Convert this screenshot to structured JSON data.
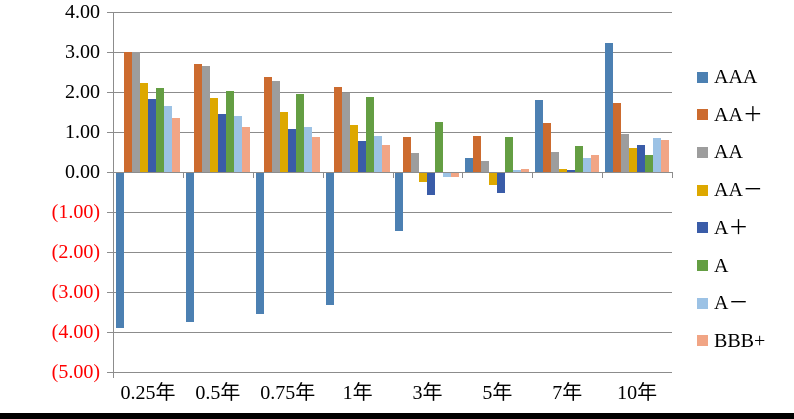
{
  "chart_data": {
    "type": "bar",
    "title": "",
    "xlabel": "",
    "ylabel": "",
    "categories": [
      "0.25年",
      "0.5年",
      "0.75年",
      "1年",
      "3年",
      "5年",
      "7年",
      "10年"
    ],
    "series": [
      {
        "name": "AAA",
        "label": "AAA",
        "color": "#4C80B2",
        "values": [
          -3.88,
          -3.72,
          -3.53,
          -3.3,
          -1.45,
          0.36,
          1.8,
          3.22
        ]
      },
      {
        "name": "AA+",
        "label": "AA＋",
        "color": "#CC6B2F",
        "values": [
          3.0,
          2.7,
          2.38,
          2.12,
          0.88,
          0.89,
          1.22,
          1.73
        ]
      },
      {
        "name": "AA",
        "label": "AA",
        "color": "#9D9D9D",
        "values": [
          3.0,
          2.64,
          2.28,
          1.98,
          0.47,
          0.28,
          0.51,
          0.96
        ]
      },
      {
        "name": "AA-",
        "label": "AA－",
        "color": "#DDA800",
        "values": [
          2.22,
          1.85,
          1.5,
          1.17,
          -0.22,
          -0.29,
          0.08,
          0.6
        ]
      },
      {
        "name": "A+",
        "label": "A＋",
        "color": "#3A5CA8",
        "values": [
          1.82,
          1.45,
          1.08,
          0.78,
          -0.55,
          -0.51,
          0.04,
          0.68
        ]
      },
      {
        "name": "A",
        "label": "A",
        "color": "#649E43",
        "values": [
          2.11,
          2.03,
          1.95,
          1.87,
          1.25,
          0.87,
          0.64,
          0.42
        ]
      },
      {
        "name": "A-",
        "label": "A－",
        "color": "#9CC2E5",
        "values": [
          1.64,
          1.4,
          1.13,
          0.9,
          -0.11,
          0.04,
          0.36,
          0.86
        ]
      },
      {
        "name": "BBB+",
        "label": "BBB+",
        "color": "#F1A585",
        "values": [
          1.36,
          1.13,
          0.87,
          0.68,
          -0.1,
          0.07,
          0.43,
          0.8
        ]
      }
    ],
    "y_axis": {
      "min": -5,
      "max": 4,
      "step": 1,
      "ticks": [
        {
          "value": 4,
          "label": "4.00"
        },
        {
          "value": 3,
          "label": "3.00"
        },
        {
          "value": 2,
          "label": "2.00"
        },
        {
          "value": 1,
          "label": "1.00"
        },
        {
          "value": 0,
          "label": "0.00"
        },
        {
          "value": -1,
          "label": "(1.00)"
        },
        {
          "value": -2,
          "label": "(2.00)"
        },
        {
          "value": -3,
          "label": "(3.00)"
        },
        {
          "value": -4,
          "label": "(4.00)"
        },
        {
          "value": -5,
          "label": "(5.00)"
        }
      ],
      "positive_label_color": "#000000",
      "negative_label_color": "#FF0000"
    },
    "grid": true,
    "gridline_color": "#8C8C8C",
    "legend_position": "right"
  }
}
